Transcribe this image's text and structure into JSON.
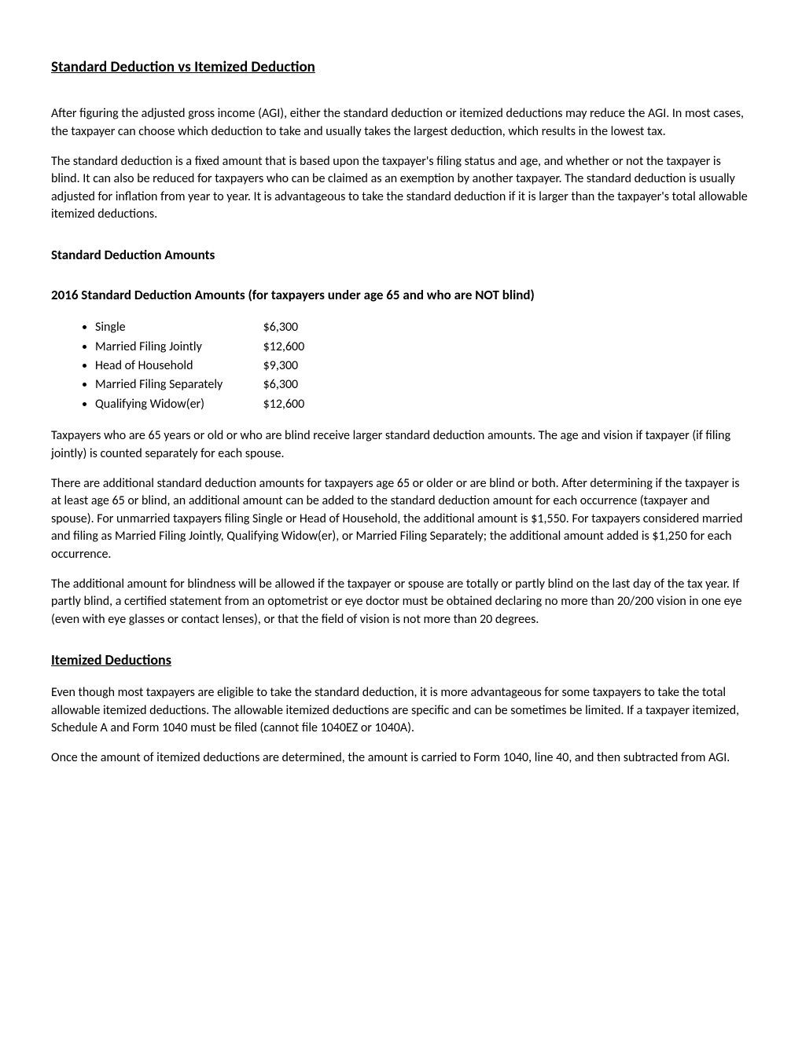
{
  "title_main": "Standard Deduction vs Itemized Deduction",
  "para_intro": "After figuring the adjusted gross income (AGI), either the standard deduction or itemized deductions may reduce the AGI. In most cases, the taxpayer can choose which deduction to take and usually takes the largest deduction, which results in the lowest tax.",
  "para_standard_explain": "The standard deduction is a fixed amount that is based upon the taxpayer's filing status and age, and whether or not the taxpayer is blind. It can also be reduced for taxpayers who can be claimed as an exemption by another taxpayer. The standard deduction is usually adjusted for inflation from year to year. It is advantageous to take the standard deduction if it is larger than the taxpayer's total allowable itemized deductions.",
  "heading_amounts": "Standard Deduction Amounts",
  "heading_2016": "2016 Standard Deduction Amounts (for taxpayers under age 65 and who are NOT blind)",
  "deductions": [
    {
      "label": "Single",
      "amount": "$6,300"
    },
    {
      "label": "Married Filing Jointly",
      "amount": "$12,600"
    },
    {
      "label": "Head of Household",
      "amount": "$9,300"
    },
    {
      "label": "Married Filing Separately",
      "amount": "$6,300"
    },
    {
      "label": "Qualifying Widow(er)",
      "amount": "$12,600"
    }
  ],
  "para_age65": "Taxpayers who are 65 years or old or who are blind receive larger standard deduction amounts. The age and vision if taxpayer (if filing jointly) is counted separately for each spouse.",
  "para_additional": "There are additional standard deduction amounts for taxpayers age 65 or older or are blind or both. After determining if the taxpayer is at least age 65 or blind, an additional amount can be added to the standard deduction amount for each occurrence (taxpayer and spouse). For unmarried taxpayers filing Single or Head of Household, the additional amount is $1,550. For taxpayers considered married and filing as Married Filing Jointly, Qualifying Widow(er), or Married Filing Separately; the additional amount added is $1,250 for each occurrence.",
  "para_blindness": "The additional amount for blindness will be allowed if the taxpayer or spouse are totally or partly blind on the last day of the tax year. If partly blind, a certified statement from an optometrist or eye doctor must be obtained declaring no more than 20/200 vision in one eye (even with eye glasses or contact lenses), or that the field of vision is not more than 20 degrees.",
  "heading_itemized": "Itemized Deductions",
  "para_itemized_intro": "Even though most taxpayers are eligible to take the standard deduction, it is more advantageous for some taxpayers to take the total allowable itemized deductions. The allowable itemized deductions are specific and can be sometimes be limited. If a taxpayer itemized, Schedule A and Form 1040 must be filed (cannot file 1040EZ or 1040A).",
  "para_itemized_form": "Once the amount of itemized deductions are determined, the amount is carried to Form 1040, line 40, and then subtracted from AGI."
}
